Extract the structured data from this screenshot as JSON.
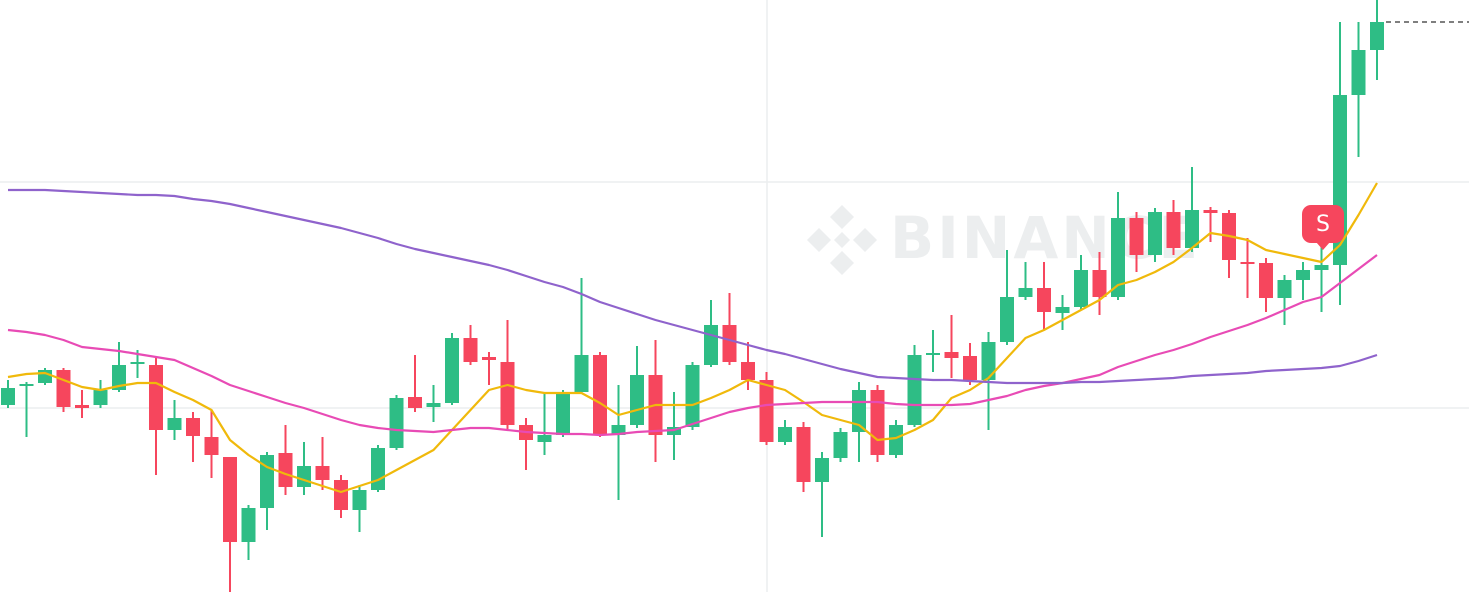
{
  "chart_data": {
    "type": "candlestick",
    "watermark": "BINANCE",
    "annotation": "S",
    "up_color": "#2ebd85",
    "down_color": "#f6465d",
    "ylim": [
      0,
      592
    ],
    "open": [
      187,
      206,
      209,
      222,
      187,
      187,
      202,
      228,
      227,
      162,
      174,
      155,
      135,
      50,
      84,
      139,
      105,
      126,
      112,
      82,
      102,
      144,
      195,
      185,
      189,
      254,
      235,
      230,
      167,
      150,
      157,
      200,
      237,
      157,
      167,
      217,
      157,
      165,
      227,
      267,
      230,
      212,
      150,
      165,
      110,
      134,
      160,
      202,
      137,
      167,
      237,
      240,
      236,
      212,
      250,
      295,
      304,
      279,
      285,
      322,
      295,
      374,
      337,
      380,
      344,
      382,
      379,
      330,
      329,
      294,
      312,
      322,
      327,
      497,
      542
    ],
    "high": [
      212,
      210,
      224,
      224,
      202,
      212,
      250,
      242,
      234,
      192,
      180,
      182,
      135,
      87,
      140,
      167,
      150,
      155,
      117,
      107,
      147,
      197,
      237,
      207,
      259,
      267,
      240,
      272,
      174,
      200,
      202,
      314,
      240,
      207,
      246,
      252,
      200,
      230,
      292,
      299,
      250,
      220,
      172,
      170,
      140,
      164,
      210,
      207,
      172,
      247,
      262,
      277,
      249,
      260,
      342,
      330,
      330,
      297,
      337,
      340,
      400,
      380,
      384,
      392,
      425,
      385,
      382,
      354,
      334,
      317,
      330,
      347,
      570,
      570,
      592
    ],
    "low": [
      184,
      155,
      207,
      180,
      174,
      184,
      200,
      214,
      117,
      152,
      130,
      114,
      0,
      32,
      62,
      97,
      97,
      102,
      74,
      60,
      100,
      142,
      180,
      170,
      187,
      227,
      207,
      162,
      122,
      137,
      155,
      199,
      155,
      92,
      164,
      130,
      132,
      162,
      225,
      227,
      202,
      147,
      147,
      100,
      55,
      130,
      130,
      130,
      134,
      165,
      220,
      214,
      207,
      162,
      247,
      292,
      262,
      262,
      282,
      277,
      292,
      320,
      330,
      337,
      340,
      350,
      314,
      294,
      280,
      267,
      292,
      280,
      287,
      435,
      512
    ],
    "close": [
      204,
      208,
      222,
      185,
      184,
      202,
      227,
      230,
      162,
      174,
      156,
      137,
      50,
      84,
      137,
      105,
      126,
      112,
      82,
      102,
      144,
      194,
      184,
      189,
      254,
      230,
      232,
      167,
      152,
      157,
      200,
      237,
      157,
      167,
      217,
      157,
      165,
      227,
      267,
      230,
      212,
      150,
      165,
      110,
      134,
      160,
      202,
      137,
      167,
      237,
      239,
      234,
      212,
      250,
      295,
      304,
      280,
      285,
      322,
      295,
      374,
      337,
      380,
      344,
      382,
      379,
      332,
      328,
      294,
      312,
      322,
      327,
      497,
      542,
      570
    ],
    "lines": [
      {
        "color": "#f0b90b",
        "values": [
          215,
          218,
          219,
          212,
          205,
          202,
          206,
          209,
          209,
          200,
          192,
          182,
          152,
          137,
          125,
          118,
          112,
          106,
          100,
          106,
          112,
          122,
          132,
          142,
          162,
          182,
          202,
          207,
          202,
          199,
          199,
          199,
          189,
          177,
          182,
          187,
          187,
          187,
          194,
          202,
          212,
          207,
          202,
          190,
          177,
          172,
          167,
          152,
          154,
          162,
          172,
          194,
          202,
          214,
          234,
          254,
          262,
          272,
          282,
          292,
          307,
          312,
          320,
          330,
          344,
          359,
          356,
          352,
          342,
          338,
          334,
          330,
          347,
          377,
          409
        ]
      },
      {
        "color": "#e84bb5",
        "values": [
          262,
          260,
          257,
          252,
          245,
          243,
          241,
          238,
          235,
          232,
          224,
          216,
          207,
          201,
          195,
          189,
          184,
          178,
          172,
          167,
          164,
          162,
          161,
          160,
          162,
          164,
          164,
          162,
          160,
          159,
          158,
          158,
          157,
          158,
          160,
          161,
          162,
          168,
          174,
          180,
          184,
          187,
          188,
          189,
          190,
          190,
          190,
          190,
          188,
          187,
          187,
          187,
          188,
          192,
          196,
          202,
          206,
          209,
          213,
          217,
          225,
          231,
          237,
          242,
          248,
          255,
          261,
          267,
          274,
          282,
          290,
          295,
          309,
          323,
          337
        ]
      },
      {
        "color": "#8f63cc",
        "values": [
          402,
          402,
          402,
          401,
          400,
          399,
          398,
          397,
          397,
          396,
          393,
          391,
          388,
          384,
          380,
          376,
          372,
          368,
          364,
          359,
          354,
          348,
          343,
          339,
          335,
          331,
          327,
          322,
          316,
          310,
          305,
          298,
          290,
          284,
          278,
          272,
          267,
          262,
          257,
          252,
          247,
          242,
          238,
          233,
          228,
          223,
          219,
          215,
          214,
          213,
          212,
          212,
          211,
          210,
          209,
          209,
          209,
          209,
          210,
          210,
          211,
          212,
          213,
          214,
          216,
          217,
          218,
          219,
          221,
          222,
          223,
          224,
          226,
          231,
          237
        ]
      }
    ]
  }
}
